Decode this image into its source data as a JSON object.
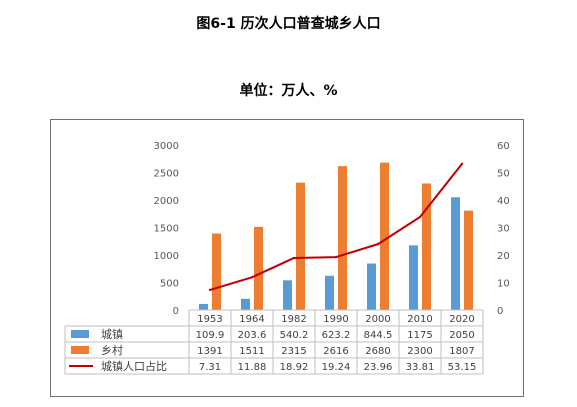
{
  "title": "图6-1  历次人口普查城乡人口",
  "unit_label": "单位：万人、%",
  "colors": {
    "urban": "#5b9bd5",
    "rural": "#ed7d31",
    "ratio": "#c00000"
  },
  "chart_data": {
    "type": "bar",
    "categories": [
      "1953",
      "1964",
      "1982",
      "1990",
      "2000",
      "2010",
      "2020"
    ],
    "series": [
      {
        "name": "城镇",
        "type": "bar",
        "axis": "left",
        "values": [
          109.9,
          203.6,
          540.2,
          623.2,
          844.5,
          1175,
          2050
        ],
        "labels": [
          "109.9",
          "203.6",
          "540.2",
          "623.2",
          "844.5",
          "1175",
          "2050"
        ]
      },
      {
        "name": "乡村",
        "type": "bar",
        "axis": "left",
        "values": [
          1391,
          1511,
          2315,
          2616,
          2680,
          2300,
          1807
        ],
        "labels": [
          "1391",
          "1511",
          "2315",
          "2616",
          "2680",
          "2300",
          "1807"
        ]
      },
      {
        "name": "城镇人口占比",
        "type": "line",
        "axis": "right",
        "values": [
          7.31,
          11.88,
          18.92,
          19.24,
          23.96,
          33.81,
          53.15
        ],
        "labels": [
          "7.31",
          "11.88",
          "18.92",
          "19.24",
          "23.96",
          "33.81",
          "53.15"
        ]
      }
    ],
    "y_left": {
      "min": 0,
      "max": 3000,
      "ticks": [
        "0",
        "500",
        "1000",
        "1500",
        "2000",
        "2500",
        "3000"
      ]
    },
    "y_right": {
      "min": 0,
      "max": 60,
      "ticks": [
        "0",
        "10",
        "20",
        "30",
        "40",
        "50",
        "60"
      ]
    },
    "data_table": true,
    "grid": false,
    "legend": "data-table"
  }
}
